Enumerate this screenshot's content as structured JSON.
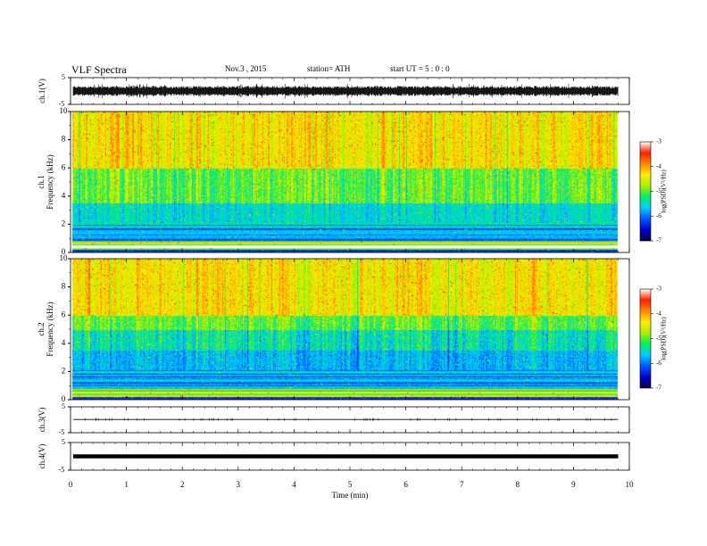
{
  "header": {
    "title": "VLF  Spectra",
    "date": "Nov.3  , 2015",
    "station": "station= ATH",
    "start": "start  UT  =   5  : 0  : 0"
  },
  "colors": {
    "cmap": [
      "#000044",
      "#0000cc",
      "#0055ff",
      "#00ccff",
      "#00ee66",
      "#aaee00",
      "#ffee00",
      "#ff8800",
      "#ff2200",
      "#ffffff"
    ],
    "trace": "#000000"
  },
  "chart_data": [
    {
      "type": "line",
      "panel": "ch1-waveform",
      "ylabel": "ch.1(V)",
      "ylim": [
        -5,
        5
      ],
      "yticks": [
        "5",
        "-5"
      ],
      "xlim": [
        0,
        10
      ],
      "description_values": {
        "amplitude_range": [
          -1.5,
          1.5
        ]
      }
    },
    {
      "type": "heatmap",
      "panel": "ch1-spectrogram",
      "ylabel_channel": "ch.1",
      "ylabel": "Frequency  (kHz)",
      "ylim": [
        0,
        10
      ],
      "yticks": [
        "0",
        "2",
        "4",
        "6",
        "8",
        "10"
      ],
      "xlim": [
        0,
        10
      ],
      "data_end_min": 9.8,
      "colorbar": {
        "label": "log(PSD)(V²/Hz)",
        "range": [
          -7,
          -3
        ],
        "ticks": [
          "-3",
          "-4",
          "-5",
          "-6",
          "-7"
        ]
      }
    },
    {
      "type": "heatmap",
      "panel": "ch2-spectrogram",
      "ylabel_channel": "ch.2",
      "ylabel": "Frequency  (kHz)",
      "ylim": [
        0,
        10
      ],
      "yticks": [
        "0",
        "2",
        "4",
        "6",
        "8",
        "10"
      ],
      "xlim": [
        0,
        10
      ],
      "data_end_min": 9.8,
      "colorbar": {
        "label": "log(PSD)(V²/Hz)",
        "range": [
          -7,
          -3
        ],
        "ticks": [
          "-3",
          "-4",
          "-5",
          "-6",
          "-7"
        ]
      }
    },
    {
      "type": "line",
      "panel": "ch3-waveform",
      "ylabel": "ch.3(V)",
      "ylim": [
        -5,
        5
      ],
      "yticks": [
        "5",
        "-5"
      ],
      "xlim": [
        0,
        10
      ],
      "description_values": {
        "offset": 0.1
      }
    },
    {
      "type": "line",
      "panel": "ch4-waveform",
      "ylabel": "ch.4(V)",
      "ylim": [
        -5,
        5
      ],
      "yticks": [
        "5",
        "-5"
      ],
      "xlim": [
        0,
        10
      ],
      "xlabel": "Time  (min)",
      "xticks": [
        "0",
        "1",
        "2",
        "3",
        "4",
        "5",
        "6",
        "7",
        "8",
        "9",
        "10"
      ],
      "description_values": {
        "offset": 0.0
      }
    }
  ]
}
